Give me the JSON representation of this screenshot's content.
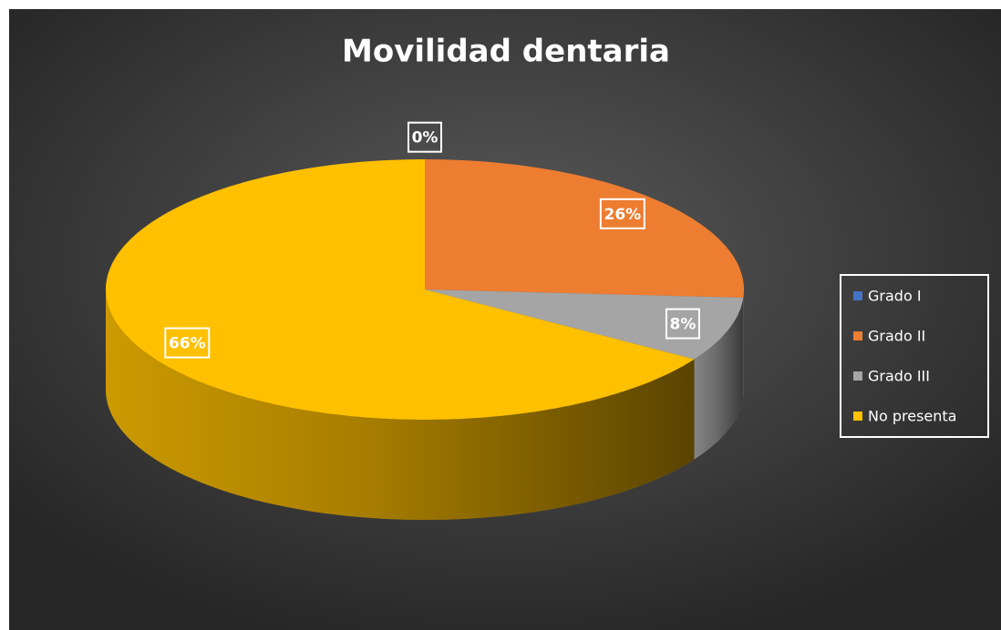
{
  "chart_data": {
    "type": "pie",
    "title": "Movilidad dentaria",
    "categories": [
      "Grado I",
      "Grado II",
      "Grado III",
      "No presenta"
    ],
    "values": [
      0,
      26,
      8,
      66
    ],
    "value_labels": [
      "0%",
      "26%",
      "8%",
      "66%"
    ],
    "colors": [
      "#4472c4",
      "#ed7d31",
      "#a5a5a5",
      "#ffc000"
    ],
    "legend": "right"
  }
}
